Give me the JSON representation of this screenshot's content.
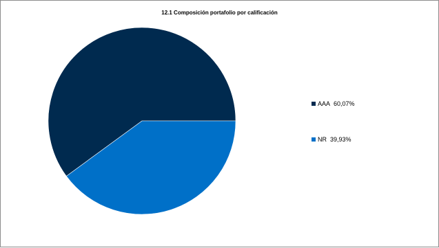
{
  "chart_data": {
    "type": "pie",
    "title": "12.1 Composición portafolio por calificación",
    "slices": [
      {
        "name": "AAA",
        "value": 60.07,
        "label": "60,07%",
        "color": "#002a4f"
      },
      {
        "name": "NR",
        "value": 39.93,
        "label": "39,93%",
        "color": "#0070c8"
      }
    ],
    "legend_position": "right"
  }
}
